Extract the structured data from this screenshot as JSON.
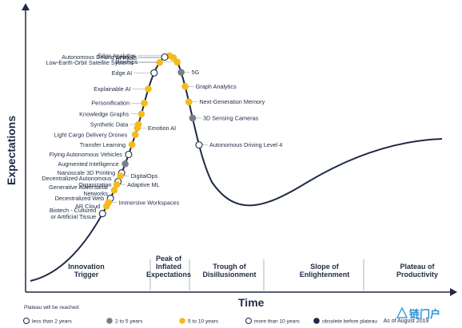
{
  "chart_data": {
    "type": "scatter",
    "subtype": "hype-cycle",
    "y_axis_title": "Expectations",
    "x_axis_title": "Time",
    "phases": [
      {
        "lines": [
          "Innovation",
          "Trigger"
        ]
      },
      {
        "lines": [
          "Peak of",
          "Inflated",
          "Expectations"
        ]
      },
      {
        "lines": [
          "Trough of",
          "Disillusionment"
        ]
      },
      {
        "lines": [
          "Slope of",
          "Enlightenment"
        ]
      },
      {
        "lines": [
          "Plateau of",
          "Productivity"
        ]
      }
    ],
    "categories": [
      {
        "key": "lt2",
        "label": "less than 2 years",
        "color": "#ffffff"
      },
      {
        "key": "2to5",
        "label": "2 to 5 years",
        "color": "#7a7f87"
      },
      {
        "key": "5to10",
        "label": "5 to 10 years",
        "color": "#f3bb1c"
      },
      {
        "key": "gt10",
        "label": "more than 10 years",
        "color": "#ffffff"
      },
      {
        "key": "obsolete",
        "label": "obsolete before plateau",
        "color": "#1f2a44"
      }
    ],
    "legend_title": "Plateau will be reached:",
    "as_of": "As of August 2019",
    "points": [
      {
        "label": [
          "Biochips"
        ],
        "t": 0.515,
        "cat": "5to10",
        "side": "left"
      },
      {
        "label": [
          "AI PaaS"
        ],
        "t": 0.5,
        "cat": "5to10",
        "side": "left"
      },
      {
        "label": [
          "Edge Analytics"
        ],
        "t": 0.485,
        "cat": "5to10",
        "side": "left"
      },
      {
        "label": [
          "Autonomous Driving Level 5"
        ],
        "t": 0.47,
        "cat": "gt10",
        "side": "left"
      },
      {
        "label": [
          "Low-Earth-Orbit Satellite Systems"
        ],
        "t": 0.455,
        "cat": "5to10",
        "side": "left"
      },
      {
        "label": [
          "Edge AI"
        ],
        "t": 0.44,
        "cat": "lt2",
        "side": "left"
      },
      {
        "label": [
          "Explainable AI"
        ],
        "t": 0.425,
        "cat": "5to10",
        "side": "left"
      },
      {
        "label": [
          "Personification"
        ],
        "t": 0.41,
        "cat": "5to10",
        "side": "left"
      },
      {
        "label": [
          "Knowledge Graphs"
        ],
        "t": 0.395,
        "cat": "5to10",
        "side": "left"
      },
      {
        "label": [
          "Synthetic Data"
        ],
        "t": 0.38,
        "cat": "5to10",
        "side": "left"
      },
      {
        "label": [
          "Light Cargo Delivery Drones"
        ],
        "t": 0.365,
        "cat": "5to10",
        "side": "left"
      },
      {
        "label": [
          "Transfer Learning"
        ],
        "t": 0.35,
        "cat": "5to10",
        "side": "left"
      },
      {
        "label": [
          "Flying Autonomous Vehicles"
        ],
        "t": 0.335,
        "cat": "gt10",
        "side": "left"
      },
      {
        "label": [
          "Augmented Intelligence"
        ],
        "t": 0.32,
        "cat": "2to5",
        "side": "left"
      },
      {
        "label": [
          "Nanoscale 3D Printing"
        ],
        "t": 0.305,
        "cat": "gt10",
        "side": "left"
      },
      {
        "label": [
          "Decentralized Autonomous",
          "Organization"
        ],
        "t": 0.29,
        "cat": "gt10",
        "side": "left"
      },
      {
        "label": [
          "Generative Adversarial",
          "Networks"
        ],
        "t": 0.275,
        "cat": "5to10",
        "side": "left"
      },
      {
        "label": [
          "Decentralized Web"
        ],
        "t": 0.26,
        "cat": "gt10",
        "side": "left"
      },
      {
        "label": [
          "AR Cloud"
        ],
        "t": 0.245,
        "cat": "5to10",
        "side": "left"
      },
      {
        "label": [
          "Biotech - Cultured",
          "or Artificial Tissue"
        ],
        "t": 0.23,
        "cat": "gt10",
        "side": "left"
      },
      {
        "label": [
          "5G"
        ],
        "t": 0.53,
        "cat": "2to5",
        "side": "right"
      },
      {
        "label": [
          "Graph Analytics"
        ],
        "t": 0.545,
        "cat": "5to10",
        "side": "right"
      },
      {
        "label": [
          "Emotion AI"
        ],
        "t": 0.375,
        "cat": "5to10",
        "side": "right"
      },
      {
        "label": [
          "DigitalOps"
        ],
        "t": 0.3,
        "cat": "5to10",
        "side": "right"
      },
      {
        "label": [
          "Adaptive ML"
        ],
        "t": 0.285,
        "cat": "5to10",
        "side": "right"
      },
      {
        "label": [
          "Immersive Workspaces"
        ],
        "t": 0.252,
        "cat": "5to10",
        "side": "right"
      },
      {
        "label": [
          "Next-Generation Memory"
        ],
        "t": 0.56,
        "cat": "5to10",
        "side": "right"
      },
      {
        "label": [
          "3D Sensing Cameras"
        ],
        "t": 0.575,
        "cat": "2to5",
        "side": "right"
      },
      {
        "label": [
          "Autonomous Driving Level 4"
        ],
        "t": 0.6,
        "cat": "gt10",
        "side": "right"
      }
    ]
  },
  "logo": {
    "text": "链门户"
  }
}
